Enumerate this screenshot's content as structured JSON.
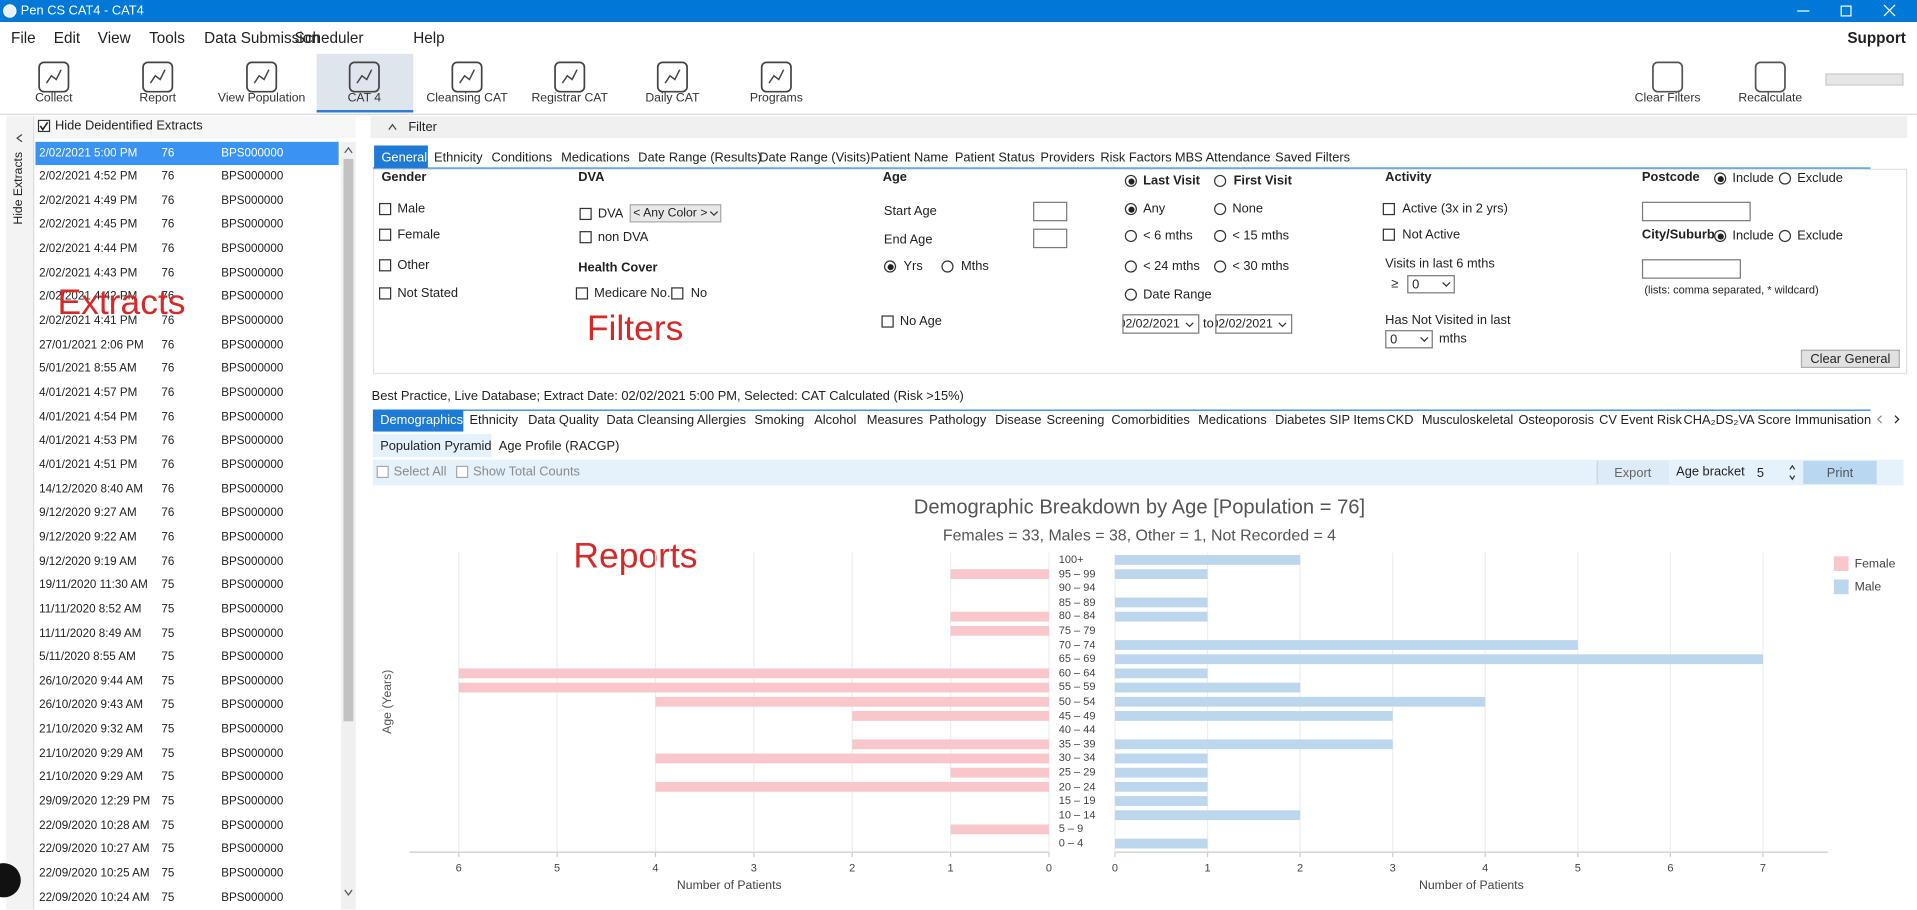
{
  "window": {
    "title": "Pen CS CAT4 - CAT4"
  },
  "menu": {
    "items": [
      "File",
      "Edit",
      "View",
      "Tools",
      "Data Submission",
      "Scheduler",
      "Help"
    ],
    "support": "Support"
  },
  "toolbar": {
    "items": [
      "Collect",
      "Report",
      "View Population",
      "CAT 4",
      "Cleansing CAT",
      "Registrar CAT",
      "Daily CAT",
      "Programs"
    ],
    "right": [
      "Clear Filters",
      "Recalculate"
    ]
  },
  "sidebar": {
    "hide_extracts": "Hide Extracts",
    "hide_deidentified": "Hide Deidentified Extracts",
    "extracts": [
      [
        "2/02/2021 5:00 PM",
        76,
        "BPS000000"
      ],
      [
        "2/02/2021 4:52 PM",
        76,
        "BPS000000"
      ],
      [
        "2/02/2021 4:49 PM",
        76,
        "BPS000000"
      ],
      [
        "2/02/2021 4:45 PM",
        76,
        "BPS000000"
      ],
      [
        "2/02/2021 4:44 PM",
        76,
        "BPS000000"
      ],
      [
        "2/02/2021 4:43 PM",
        76,
        "BPS000000"
      ],
      [
        "2/02/2021 4:42 PM",
        76,
        "BPS000000"
      ],
      [
        "2/02/2021 4:41 PM",
        76,
        "BPS000000"
      ],
      [
        "27/01/2021 2:06 PM",
        76,
        "BPS000000"
      ],
      [
        "5/01/2021 8:55 AM",
        76,
        "BPS000000"
      ],
      [
        "4/01/2021 4:57 PM",
        76,
        "BPS000000"
      ],
      [
        "4/01/2021 4:54 PM",
        76,
        "BPS000000"
      ],
      [
        "4/01/2021 4:53 PM",
        76,
        "BPS000000"
      ],
      [
        "4/01/2021 4:51 PM",
        76,
        "BPS000000"
      ],
      [
        "14/12/2020 8:40 AM",
        76,
        "BPS000000"
      ],
      [
        "9/12/2020 9:27 AM",
        76,
        "BPS000000"
      ],
      [
        "9/12/2020 9:22 AM",
        76,
        "BPS000000"
      ],
      [
        "9/12/2020 9:19 AM",
        76,
        "BPS000000"
      ],
      [
        "19/11/2020 11:30 AM",
        75,
        "BPS000000"
      ],
      [
        "11/11/2020 8:52 AM",
        75,
        "BPS000000"
      ],
      [
        "11/11/2020 8:49 AM",
        75,
        "BPS000000"
      ],
      [
        "5/11/2020 8:55 AM",
        75,
        "BPS000000"
      ],
      [
        "26/10/2020 9:44 AM",
        75,
        "BPS000000"
      ],
      [
        "26/10/2020 9:43 AM",
        75,
        "BPS000000"
      ],
      [
        "21/10/2020 9:32 AM",
        75,
        "BPS000000"
      ],
      [
        "21/10/2020 9:29 AM",
        75,
        "BPS000000"
      ],
      [
        "21/10/2020 9:29 AM",
        75,
        "BPS000000"
      ],
      [
        "29/09/2020 12:29 PM",
        75,
        "BPS000000"
      ],
      [
        "22/09/2020 10:28 AM",
        75,
        "BPS000000"
      ],
      [
        "22/09/2020 10:27 AM",
        75,
        "BPS000000"
      ],
      [
        "22/09/2020 10:25 AM",
        75,
        "BPS000000"
      ],
      [
        "22/09/2020 10:24 AM",
        75,
        "BPS000000"
      ]
    ]
  },
  "annotations": {
    "extracts": "Extracts",
    "filters": "Filters",
    "reports": "Reports"
  },
  "filter": {
    "header": "Filter",
    "tabs": [
      "General",
      "Ethnicity",
      "Conditions",
      "Medications",
      "Date Range (Results)",
      "Date Range (Visits)",
      "Patient Name",
      "Patient Status",
      "Providers",
      "Risk Factors",
      "MBS Attendance",
      "Saved Filters"
    ],
    "gender": {
      "title": "Gender",
      "options": [
        "Male",
        "Female",
        "Other",
        "Not Stated"
      ]
    },
    "dva": {
      "title": "DVA",
      "options": [
        "DVA",
        "non DVA"
      ],
      "color": "< Any Color >"
    },
    "health_cover": {
      "title": "Health Cover",
      "options": [
        "Medicare No.",
        "No"
      ]
    },
    "age": {
      "title": "Age",
      "start": "Start Age",
      "end": "End Age",
      "units": [
        "Yrs",
        "Mths"
      ],
      "no_age": "No Age"
    },
    "visit": {
      "modes": [
        "Last Visit",
        "First Visit"
      ],
      "options": [
        "Any",
        "None",
        "< 6 mths",
        "< 15 mths",
        "< 24 mths",
        "< 30 mths",
        "Date Range"
      ],
      "from": "02/02/2021",
      "to_label": "to",
      "to": "02/02/2021"
    },
    "activity": {
      "title": "Activity",
      "options": [
        "Active (3x in 2 yrs)",
        "Not Active"
      ],
      "visits_label": "Visits in last 6 mths",
      "ge": "≥",
      "visits_value": 0,
      "not_visited_label": "Has Not Visited in last",
      "not_visited_value": 0,
      "units": "mths"
    },
    "location": {
      "postcode": "Postcode",
      "city": "City/Suburb",
      "include": "Include",
      "exclude": "Exclude",
      "hint": "(lists: comma separated, * wildcard)"
    },
    "clear": "Clear General"
  },
  "status": "Best Practice, Live Database; Extract Date: 02/02/2021 5:00 PM, Selected: CAT Calculated (Risk >15%)",
  "report_tabs": [
    "Demographics",
    "Ethnicity",
    "Data Quality",
    "Data Cleansing",
    "Allergies",
    "Smoking",
    "Alcohol",
    "Measures",
    "Pathology",
    "Disease",
    "Screening",
    "Comorbidities",
    "Medications",
    "Diabetes SIP Items",
    "CKD",
    "Musculoskeletal",
    "Osteoporosis",
    "CV Event Risk",
    "CHA₂DS₂VA Score",
    "Immunisation"
  ],
  "sub_tabs": [
    "Population Pyramid",
    "Age Profile (RACGP)"
  ],
  "report_toolbar": {
    "select_all": "Select All",
    "show_total_counts": "Show Total Counts",
    "export": "Export",
    "age_bracket_label": "Age bracket",
    "age_bracket": 5,
    "print": "Print"
  },
  "chart": {
    "type": "bar",
    "title": "Demographic Breakdown by Age [Population = 76]",
    "subtitle": "Females = 33, Males = 38, Other = 1, Not Recorded = 4",
    "ylabel": "Age (Years)",
    "categories": [
      "100+",
      "95 – 99",
      "90 – 94",
      "85 – 89",
      "80 – 84",
      "75 – 79",
      "70 – 74",
      "65 – 69",
      "60 – 64",
      "55 – 59",
      "50 – 54",
      "45 – 49",
      "40 – 44",
      "35 – 39",
      "30 – 34",
      "25 – 29",
      "20 – 24",
      "15 – 19",
      "10 – 14",
      "5 – 9",
      "0 – 4"
    ],
    "series": [
      {
        "name": "Female",
        "color": "#f8c6cb",
        "values": [
          0,
          1,
          0,
          0,
          1,
          1,
          0,
          0,
          6,
          6,
          4,
          2,
          0,
          2,
          4,
          1,
          4,
          0,
          0,
          1,
          0
        ],
        "xlim": [
          0,
          6.5
        ],
        "xticks": [
          6,
          5,
          4,
          3,
          2,
          1,
          0
        ],
        "xlabel": "Number of Patients"
      },
      {
        "name": "Male",
        "color": "#bcd6ee",
        "values": [
          2,
          1,
          0,
          1,
          1,
          0,
          5,
          7,
          1,
          2,
          4,
          3,
          0,
          3,
          1,
          1,
          1,
          1,
          2,
          0,
          1
        ],
        "xlim": [
          0,
          7.7
        ],
        "xticks": [
          0,
          1,
          2,
          3,
          4,
          5,
          6,
          7
        ],
        "xlabel": "Number of Patients"
      }
    ],
    "grid": true
  }
}
